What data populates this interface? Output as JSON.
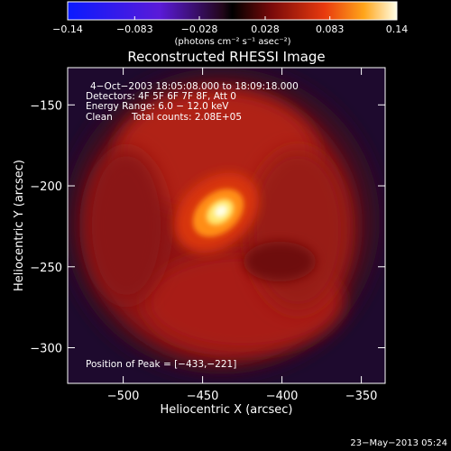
{
  "chart_data": {
    "type": "heatmap",
    "title": "Reconstructed RHESSI Image",
    "xlabel": "Heliocentric X (arcsec)",
    "ylabel": "Heliocentric Y (arcsec)",
    "xlim": [
      -535,
      -335
    ],
    "ylim": [
      -322,
      -127
    ],
    "x_ticks": [
      -500,
      -450,
      -400,
      -350
    ],
    "y_ticks": [
      -150,
      -200,
      -250,
      -300
    ],
    "x_tick_labels": [
      "−500",
      "−450",
      "−400",
      "−350"
    ],
    "y_tick_labels": [
      "−150",
      "−200",
      "−250",
      "−300"
    ],
    "colorbar": {
      "range": [
        -0.14,
        0.14
      ],
      "tick_values": [
        -0.14,
        -0.083,
        -0.028,
        0.028,
        0.083,
        0.14
      ],
      "tick_labels": [
        "−0.14",
        "−0.083",
        "−0.028",
        "0.028",
        "0.083",
        "0.14"
      ],
      "units": "(photons cm⁻² s⁻¹ asec⁻²)"
    },
    "annotations": {
      "time_range": "4−Oct−2003 18:05:08.000 to 18:09:18.000",
      "detectors": "Detectors: 4F 5F 6F 7F 8F, Att 0",
      "energy_range": "Energy Range: 6.0 − 12.0 keV",
      "algorithm": "Clean",
      "total_counts": "Total counts: 2.08E+05",
      "peak": "Position of Peak = [−433,−221]"
    },
    "peak_position": [
      -433,
      -221
    ],
    "sources": [
      {
        "x": -433,
        "y": -221,
        "peak": 0.14,
        "shape": "elliptical core"
      },
      {
        "x": -440,
        "y": -225,
        "peak": 0.06,
        "shape": "diffuse ring"
      }
    ]
  },
  "footer": {
    "timestamp": "23−May−2013 05:24"
  }
}
